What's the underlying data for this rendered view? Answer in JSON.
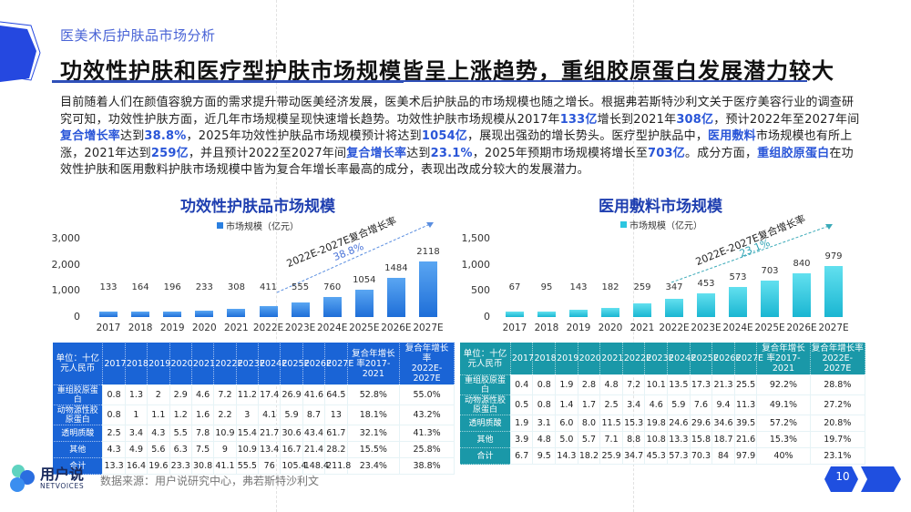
{
  "header": {
    "section_label": "医美术后护肤品市场分析",
    "title": "功效性护肤和医疗型护肤市场规模皆呈上涨趋势，重组胶原蛋白发展潜力较大"
  },
  "body": {
    "segments": [
      {
        "t": "目前随着人们在颜值容貌方面的需求提升带动医美经济发展，医美术后护肤品的市场规模也随之增长。根据弗若斯特沙利文关于医疗美容行业的调查研究可知，功效性护肤方面，近几年市场规模呈现快速增长趋势。功效性护肤市场规模从2017年",
        "hl": false
      },
      {
        "t": "133亿",
        "hl": true
      },
      {
        "t": "增长到2021年",
        "hl": false
      },
      {
        "t": "308亿",
        "hl": true
      },
      {
        "t": "，预计2022年至2027年间",
        "hl": false
      },
      {
        "t": "复合增长率",
        "hl": true
      },
      {
        "t": "达到",
        "hl": false
      },
      {
        "t": "38.8%",
        "hl": true
      },
      {
        "t": "，2025年功效性护肤品市场规模预计将达到",
        "hl": false
      },
      {
        "t": "1054亿",
        "hl": true
      },
      {
        "t": "，展现出强劲的增长势头。医疗型护肤品中，",
        "hl": false
      },
      {
        "t": "医用敷料",
        "hl": true
      },
      {
        "t": "市场规模也有所上涨，2021年达到",
        "hl": false
      },
      {
        "t": "259亿",
        "hl": true
      },
      {
        "t": "，并且预计2022至2027年间",
        "hl": false
      },
      {
        "t": "复合增长率",
        "hl": true
      },
      {
        "t": "达到",
        "hl": false
      },
      {
        "t": "23.1%",
        "hl": true
      },
      {
        "t": "，2025年预期市场规模将增长至",
        "hl": false
      },
      {
        "t": "703亿",
        "hl": true
      },
      {
        "t": "。成分方面，",
        "hl": false
      },
      {
        "t": "重组胶原蛋白",
        "hl": true
      },
      {
        "t": "在功效性护肤和医用敷料护肤市场规模中皆为复合年增长率最高的成分，表现出改成分较大的发展潜力。",
        "hl": false
      }
    ]
  },
  "colors": {
    "accent_blue": "#1f3fb0",
    "highlight": "#2a56d8",
    "table_blue": "#1a64d6",
    "table_teal": "#1a98a8",
    "bar_blue": "#2a7fe0",
    "bar_cyan": "#2cc6e0"
  },
  "chart_data": [
    {
      "type": "bar",
      "title": "功效性护肤品市场规模",
      "legend": [
        "市场规模（亿元）"
      ],
      "categories": [
        "2017",
        "2018",
        "2019",
        "2020",
        "2021",
        "2022E",
        "2023E",
        "2024E",
        "2025E",
        "2026E",
        "2027E"
      ],
      "values": [
        133,
        164,
        196,
        233,
        308,
        411,
        555,
        760,
        1054,
        1484,
        2118
      ],
      "value_labels": [
        "133",
        "164",
        "196",
        "233",
        "308",
        "411",
        "555",
        "760",
        "1054",
        "1484",
        "2118"
      ],
      "yticks": [
        "0",
        "1,000",
        "2,000",
        "3,000"
      ],
      "ylim": [
        0,
        3000
      ],
      "annotation": {
        "label": "2022E-2027E复合增长率",
        "value": "38.8%"
      },
      "xlabel": "",
      "ylabel": "",
      "grid": true,
      "legend_position": "top"
    },
    {
      "type": "bar",
      "title": "医用敷料市场规模",
      "legend": [
        "市场规模（亿元）"
      ],
      "categories": [
        "2017",
        "2018",
        "2019",
        "2020",
        "2021",
        "2022E",
        "2023E",
        "2024E",
        "2025E",
        "2026E",
        "2027E"
      ],
      "values": [
        67,
        95,
        143,
        182,
        259,
        347,
        453,
        573,
        703,
        840,
        979
      ],
      "value_labels": [
        "67",
        "95",
        "143",
        "182",
        "259",
        "347",
        "453",
        "573",
        "703",
        "840",
        "979"
      ],
      "yticks": [
        "0",
        "500",
        "1,000",
        "1,500"
      ],
      "ylim": [
        0,
        1500
      ],
      "annotation": {
        "label": "2022E-2027E复合增长率",
        "value": "23.1%"
      },
      "xlabel": "",
      "ylabel": "",
      "grid": true,
      "legend_position": "top"
    },
    {
      "type": "table",
      "title": "功效性护肤品成分市场规模",
      "columns": [
        "单位：十亿元人民币",
        "2017",
        "2018",
        "2019",
        "2020",
        "2021",
        "2022E",
        "2023E",
        "2024E",
        "2025E",
        "2026E",
        "2027E",
        "复合年增长率2017-2021",
        "复合年增长率2022E-2027E"
      ],
      "rows": [
        [
          "重组胶原蛋白",
          "0.8",
          "1.3",
          "2",
          "2.9",
          "4.6",
          "7.2",
          "11.2",
          "17.4",
          "26.9",
          "41.6",
          "64.5",
          "52.8%",
          "55.0%"
        ],
        [
          "动物源性胶原蛋白",
          "0.8",
          "1",
          "1.1",
          "1.2",
          "1.6",
          "2.2",
          "3",
          "4.1",
          "5.9",
          "8.7",
          "13",
          "18.1%",
          "43.2%"
        ],
        [
          "透明质酸",
          "2.5",
          "3.4",
          "4.3",
          "5.5",
          "7.8",
          "10.9",
          "15.4",
          "21.7",
          "30.6",
          "43.4",
          "61.7",
          "32.1%",
          "41.3%"
        ],
        [
          "其他",
          "4.3",
          "4.9",
          "5.6",
          "6.3",
          "7.5",
          "9",
          "10.9",
          "13.4",
          "16.7",
          "21.4",
          "28.2",
          "15.5%",
          "25.8%"
        ],
        [
          "合计",
          "13.3",
          "16.4",
          "19.6",
          "23.3",
          "30.8",
          "41.1",
          "55.5",
          "76",
          "105.4",
          "148.4",
          "211.8",
          "23.4%",
          "38.8%"
        ]
      ]
    },
    {
      "type": "table",
      "title": "医用敷料成分市场规模",
      "columns": [
        "单位：十亿元人民币",
        "2017",
        "2018",
        "2019",
        "2020",
        "2021",
        "2022E",
        "2023E",
        "2024E",
        "2025E",
        "2026E",
        "2027E",
        "复合年增长率2017-2021",
        "复合年增长率2022E-2027E"
      ],
      "rows": [
        [
          "重组胶原蛋白",
          "0.4",
          "0.8",
          "1.9",
          "2.8",
          "4.8",
          "7.2",
          "10.1",
          "13.5",
          "17.3",
          "21.3",
          "25.5",
          "92.2%",
          "28.8%"
        ],
        [
          "动物源性胶原蛋白",
          "0.5",
          "0.8",
          "1.4",
          "1.7",
          "2.5",
          "3.4",
          "4.6",
          "5.9",
          "7.6",
          "9.4",
          "11.3",
          "49.1%",
          "27.2%"
        ],
        [
          "透明质酸",
          "1.9",
          "3.1",
          "6.0",
          "8.0",
          "11.5",
          "15.3",
          "19.8",
          "24.6",
          "29.6",
          "34.6",
          "39.5",
          "57.2%",
          "20.8%"
        ],
        [
          "其他",
          "3.9",
          "4.8",
          "5.0",
          "5.7",
          "7.1",
          "8.8",
          "10.8",
          "13.3",
          "15.8",
          "18.7",
          "21.6",
          "15.3%",
          "19.7%"
        ],
        [
          "合计",
          "6.7",
          "9.5",
          "14.3",
          "18.2",
          "25.9",
          "34.7",
          "45.3",
          "57.3",
          "70.3",
          "84",
          "97.9",
          "40%",
          "23.1%"
        ]
      ]
    }
  ],
  "tables": {
    "header_unit_line1": "单位：十亿",
    "header_unit_line2": "元人民币",
    "years": [
      "2017",
      "2018",
      "2019",
      "2020",
      "2021",
      "2022E",
      "2023E",
      "2024E",
      "2025E",
      "2026E",
      "2027E"
    ],
    "cagr1_lines": [
      "复合年增长",
      "率2017-",
      "2021"
    ],
    "cagr2_lines": [
      "复合年增长率",
      "2022E-2027E"
    ],
    "row_heads": [
      [
        "重组胶原蛋",
        "白"
      ],
      [
        "动物源性胶",
        "原蛋白"
      ],
      [
        "透明质酸"
      ],
      [
        "其他"
      ],
      [
        "合计"
      ]
    ]
  },
  "footer": {
    "logo_main": "用户说",
    "logo_sub": "NETVOICES",
    "source": "数据来源：用户说研究中心，弗若斯特沙利文",
    "page_number": "10"
  }
}
